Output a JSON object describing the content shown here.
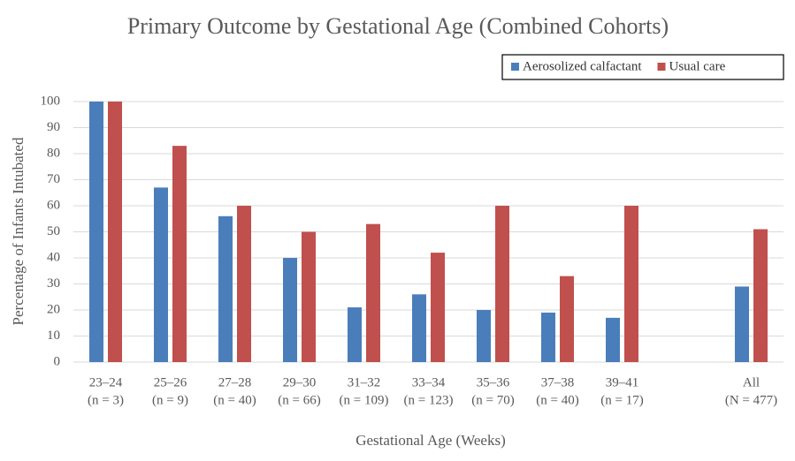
{
  "chart_data": {
    "type": "bar",
    "title": "Primary Outcome by Gestational Age (Combined Cohorts)",
    "x_label": "Gestational Age (Weeks)",
    "y_label": "Percentage of Infants Intubated",
    "categories": [
      "23–24",
      "25–26",
      "27–28",
      "29–30",
      "31–32",
      "33–34",
      "35–36",
      "37–38",
      "39–41",
      null,
      "All"
    ],
    "category_counts": [
      "(n = 3)",
      "(n = 9)",
      "(n = 40)",
      "(n = 66)",
      "(n = 109)",
      "(n = 123)",
      "(n = 70)",
      "(n = 40)",
      "(n = 17)",
      null,
      "(N = 477)"
    ],
    "series": [
      {
        "name": "Aerosolized calfactant",
        "color": "#4a7ebb",
        "values": [
          100,
          67,
          56,
          40,
          21,
          26,
          20,
          19,
          17,
          null,
          29
        ]
      },
      {
        "name": "Usual care",
        "color": "#c0504d",
        "values": [
          100,
          83,
          60,
          50,
          53,
          42,
          60,
          33,
          60,
          null,
          51
        ]
      }
    ],
    "ylim": [
      0,
      100
    ],
    "yticks": [
      0,
      10,
      20,
      30,
      40,
      50,
      60,
      70,
      80,
      90,
      100
    ],
    "grid": true,
    "legend": "top-right"
  }
}
